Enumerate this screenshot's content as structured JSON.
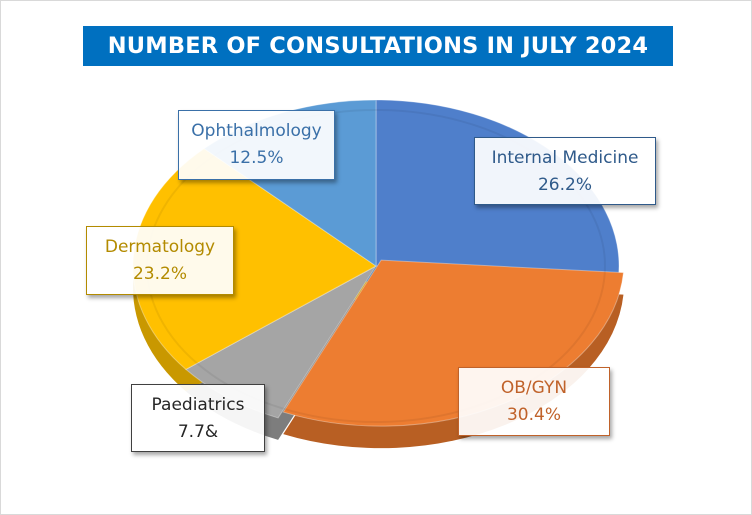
{
  "chart_data": {
    "type": "pie",
    "title": "NUMBER OF CONSULTATIONS IN JULY 2024",
    "slices": [
      {
        "name": "Internal Medicine",
        "label_value": "26.2%",
        "value": 26.2,
        "color": "#4f7fcb",
        "dark": "#3a5f9e",
        "label_color": "#2f5a8a"
      },
      {
        "name": "OB/GYN",
        "label_value": "30.4%",
        "value": 30.4,
        "color": "#ed7d31",
        "dark": "#b85f23",
        "label_color": "#c0622a"
      },
      {
        "name": "Paediatrics",
        "label_value": "7.7&",
        "value": 7.7,
        "color": "#a5a5a5",
        "dark": "#7d7d7d",
        "label_color": "#404040"
      },
      {
        "name": "Dermatology",
        "label_value": "23.2%",
        "value": 23.2,
        "color": "#ffc000",
        "dark": "#c99800",
        "label_color": "#b38b00"
      },
      {
        "name": "Ophthalmology",
        "label_value": "12.5%",
        "value": 12.5,
        "color": "#5b9bd5",
        "dark": "#3f76a8",
        "label_color": "#3a70a8"
      }
    ]
  }
}
